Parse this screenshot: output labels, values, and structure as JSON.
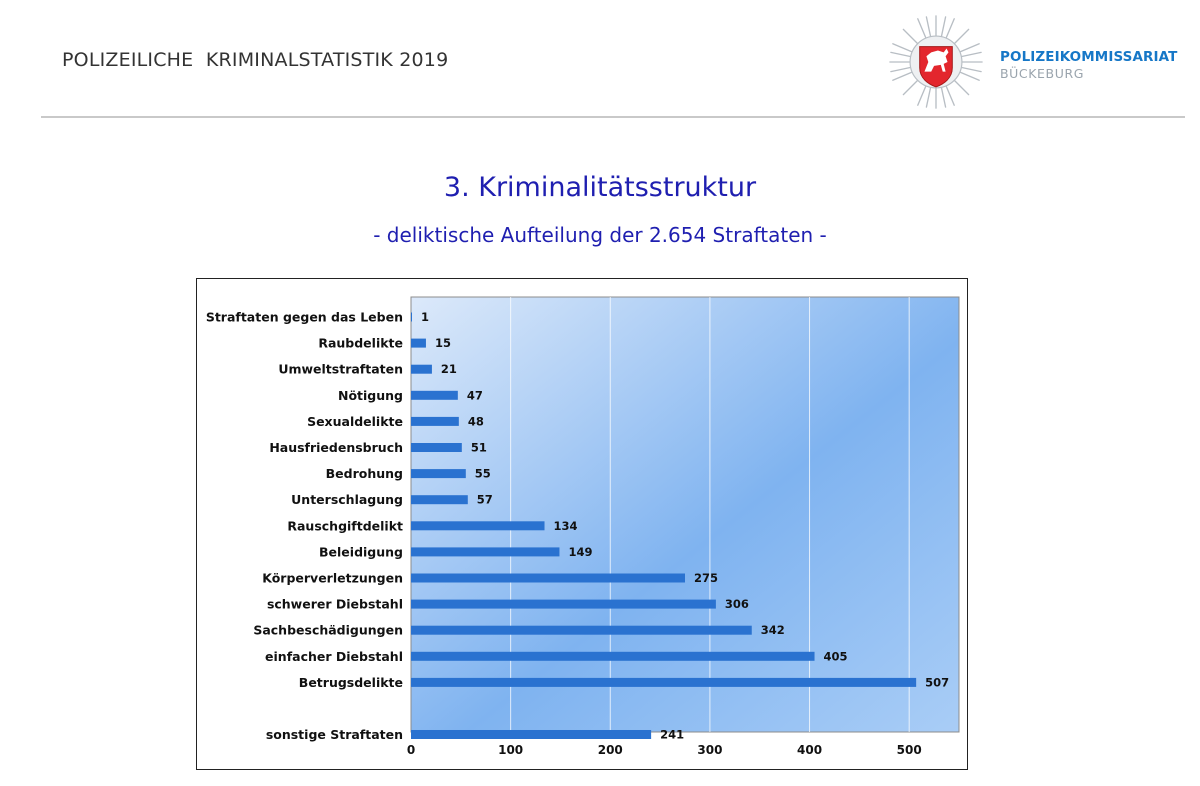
{
  "header": {
    "title": "POLIZEILICHE  KRIMINALSTATISTIK 2019",
    "org_line1": "POLIZEIKOMMISSARIAT",
    "org_line2": "BÜCKEBURG"
  },
  "page": {
    "title": "3. Kriminalitätsstruktur",
    "subtitle": "- deliktische Aufteilung der 2.654 Straftaten -"
  },
  "colors": {
    "bar": "#2a72d0",
    "title": "#1f1fb0",
    "org": "#1677c7",
    "plot_bg_light": "#dce9fa",
    "plot_bg_mid": "#7fb3f0",
    "plot_bg_dark": "#a9cdf6"
  },
  "icons": {
    "badge": "police-star-badge-with-horse-icon"
  },
  "chart_data": {
    "type": "bar",
    "orientation": "horizontal",
    "categories": [
      "Straftaten gegen das Leben",
      "Raubdelikte",
      "Umweltstraftaten",
      "Nötigung",
      "Sexualdelikte",
      "Hausfriedensbruch",
      "Bedrohung",
      "Unterschlagung",
      "Rauschgiftdelikt",
      "Beleidigung",
      "Körperverletzungen",
      "schwerer Diebstahl",
      "Sachbeschädigungen",
      "einfacher Diebstahl",
      "Betrugsdelikte",
      "sonstige Straftaten"
    ],
    "values": [
      1,
      15,
      21,
      47,
      48,
      51,
      55,
      57,
      134,
      149,
      275,
      306,
      342,
      405,
      507,
      241
    ],
    "xlim": [
      0,
      550
    ],
    "xticks": [
      0,
      100,
      200,
      300,
      400,
      500
    ],
    "xlabel": "",
    "ylabel": "",
    "data_labels": true,
    "grid": "vertical",
    "legend": "none"
  }
}
